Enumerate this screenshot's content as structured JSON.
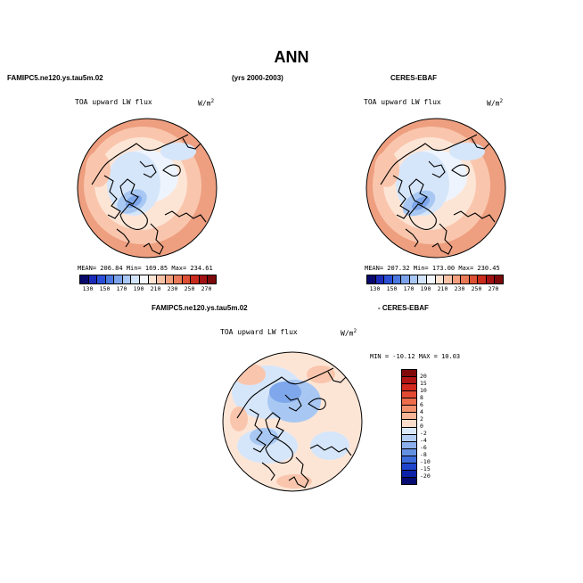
{
  "page": {
    "title": "ANN",
    "model_label": "FAMIPC5.ne120.ys.tau5m.02",
    "years_label": "(yrs 2000-2003)",
    "obs_label": "CERES-EBAF",
    "diff_model_label": "FAMIPC5.ne120.ys.tau5m.02",
    "diff_obs_label": "- CERES-EBAF"
  },
  "panels": {
    "model": {
      "variable": "TOA upward LW flux",
      "units_base": "W/m",
      "units_exp": "2",
      "stats": "MEAN= 206.84   Min= 169.85   Max= 234.61"
    },
    "obs": {
      "variable": "TOA upward LW flux",
      "units_base": "W/m",
      "units_exp": "2",
      "stats": "MEAN= 207.32   Min= 173.00   Max= 230.45"
    },
    "diff": {
      "variable": "TOA upward LW flux",
      "units_base": "W/m",
      "units_exp": "2",
      "stats": "MIN = -10.12 MAX =  10.03"
    }
  },
  "colorbars": {
    "abs": {
      "labels": [
        "130",
        "150",
        "170",
        "190",
        "210",
        "230",
        "250",
        "270"
      ],
      "colors": [
        "#08086b",
        "#1a2bb8",
        "#2b50d6",
        "#4a78e0",
        "#7ba3ec",
        "#a9c7f4",
        "#d3e4fa",
        "#f4f8fd",
        "#fde3d3",
        "#f8c2a6",
        "#f29f7e",
        "#e97a58",
        "#dd5034",
        "#c92b1d",
        "#a11212",
        "#7d0a0a"
      ]
    },
    "diff": {
      "labels": [
        "20",
        "15",
        "10",
        "8",
        "6",
        "4",
        "2",
        "0",
        "-2",
        "-4",
        "-6",
        "-8",
        "-10",
        "-15",
        "-20"
      ],
      "colors": [
        "#800a0a",
        "#b01414",
        "#d22a1e",
        "#e24a32",
        "#ec6c4c",
        "#f2906e",
        "#f7b698",
        "#fbdccb",
        "#dae8fb",
        "#b4cdf4",
        "#8cb0ec",
        "#6490e2",
        "#3d6cda",
        "#1f45cc",
        "#0c22a8",
        "#060c72"
      ]
    }
  }
}
